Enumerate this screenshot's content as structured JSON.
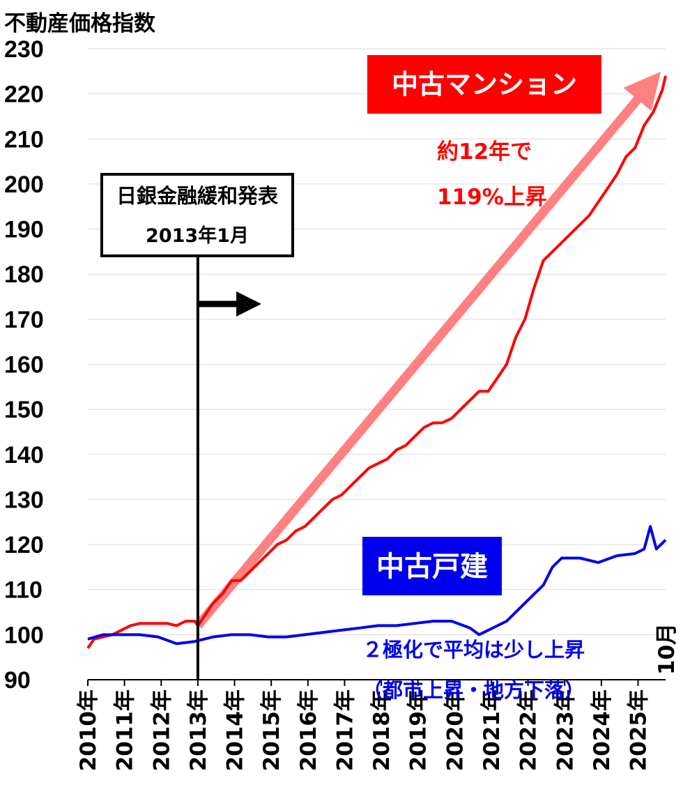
{
  "chart_data": {
    "type": "line",
    "title": "不動産価格指数",
    "ylim": [
      90,
      230
    ],
    "yticks": [
      90,
      100,
      110,
      120,
      130,
      140,
      150,
      160,
      170,
      180,
      190,
      200,
      210,
      220,
      230
    ],
    "x_start": "2010-01",
    "x_end": "2025-10",
    "xticks": [
      "2010年",
      "2011年",
      "2012年",
      "2013年",
      "2014年",
      "2015年",
      "2016年",
      "2017年",
      "2018年",
      "2019年",
      "2020年",
      "2021年",
      "2022年",
      "2023年",
      "2024年",
      "2025年"
    ],
    "x_end_label": "10月",
    "grid": true,
    "series": [
      {
        "name": "中古マンション",
        "color": "#ff0000",
        "points": [
          [
            "2010-01",
            97
          ],
          [
            "2010-03",
            99
          ],
          [
            "2010-06",
            99.5
          ],
          [
            "2010-09",
            100
          ],
          [
            "2010-12",
            101
          ],
          [
            "2011-03",
            102
          ],
          [
            "2011-06",
            102.5
          ],
          [
            "2011-09",
            102.5
          ],
          [
            "2011-12",
            102.5
          ],
          [
            "2012-03",
            102.5
          ],
          [
            "2012-06",
            102
          ],
          [
            "2012-09",
            103
          ],
          [
            "2012-12",
            103
          ],
          [
            "2013-01",
            102
          ],
          [
            "2013-03",
            104
          ],
          [
            "2013-06",
            107
          ],
          [
            "2013-09",
            109
          ],
          [
            "2013-12",
            112
          ],
          [
            "2014-03",
            112
          ],
          [
            "2014-06",
            114
          ],
          [
            "2014-09",
            116
          ],
          [
            "2014-12",
            118
          ],
          [
            "2015-03",
            120
          ],
          [
            "2015-06",
            121
          ],
          [
            "2015-09",
            123
          ],
          [
            "2015-12",
            124
          ],
          [
            "2016-03",
            126
          ],
          [
            "2016-06",
            128
          ],
          [
            "2016-09",
            130
          ],
          [
            "2016-12",
            131
          ],
          [
            "2017-03",
            133
          ],
          [
            "2017-06",
            135
          ],
          [
            "2017-09",
            137
          ],
          [
            "2017-12",
            138
          ],
          [
            "2018-03",
            139
          ],
          [
            "2018-06",
            141
          ],
          [
            "2018-09",
            142
          ],
          [
            "2018-12",
            144
          ],
          [
            "2019-03",
            146
          ],
          [
            "2019-06",
            147
          ],
          [
            "2019-09",
            147
          ],
          [
            "2019-12",
            148
          ],
          [
            "2020-03",
            150
          ],
          [
            "2020-06",
            152
          ],
          [
            "2020-09",
            154
          ],
          [
            "2020-12",
            154
          ],
          [
            "2021-03",
            157
          ],
          [
            "2021-06",
            160
          ],
          [
            "2021-09",
            166
          ],
          [
            "2021-12",
            170
          ],
          [
            "2022-03",
            177
          ],
          [
            "2022-06",
            183
          ],
          [
            "2022-09",
            185
          ],
          [
            "2022-12",
            187
          ],
          [
            "2023-03",
            189
          ],
          [
            "2023-06",
            191
          ],
          [
            "2023-09",
            193
          ],
          [
            "2023-12",
            196
          ],
          [
            "2024-03",
            199
          ],
          [
            "2024-06",
            202
          ],
          [
            "2024-09",
            206
          ],
          [
            "2024-12",
            208
          ],
          [
            "2025-03",
            213
          ],
          [
            "2025-06",
            216
          ],
          [
            "2025-09",
            221
          ],
          [
            "2025-10",
            224
          ]
        ]
      },
      {
        "name": "中古戸建",
        "color": "#0000ee",
        "points": [
          [
            "2010-01",
            99
          ],
          [
            "2010-06",
            100
          ],
          [
            "2010-12",
            100
          ],
          [
            "2011-06",
            100
          ],
          [
            "2011-12",
            99.5
          ],
          [
            "2012-06",
            98
          ],
          [
            "2012-12",
            98.5
          ],
          [
            "2013-06",
            99.5
          ],
          [
            "2013-12",
            100
          ],
          [
            "2014-06",
            100
          ],
          [
            "2014-12",
            99.5
          ],
          [
            "2015-06",
            99.5
          ],
          [
            "2015-12",
            100
          ],
          [
            "2016-06",
            100.5
          ],
          [
            "2016-12",
            101
          ],
          [
            "2017-06",
            101.5
          ],
          [
            "2017-12",
            102
          ],
          [
            "2018-06",
            102
          ],
          [
            "2018-12",
            102.5
          ],
          [
            "2019-06",
            103
          ],
          [
            "2019-12",
            103
          ],
          [
            "2020-06",
            101.5
          ],
          [
            "2020-09",
            100
          ],
          [
            "2020-12",
            101
          ],
          [
            "2021-06",
            103
          ],
          [
            "2021-12",
            107
          ],
          [
            "2022-06",
            111
          ],
          [
            "2022-09",
            115
          ],
          [
            "2022-12",
            117
          ],
          [
            "2023-06",
            117
          ],
          [
            "2023-12",
            116
          ],
          [
            "2024-06",
            117.5
          ],
          [
            "2024-12",
            118
          ],
          [
            "2025-03",
            119
          ],
          [
            "2025-05",
            124
          ],
          [
            "2025-07",
            119
          ],
          [
            "2025-10",
            121
          ]
        ]
      }
    ],
    "annotations": {
      "boj_box_line1": "日銀金融緩和発表",
      "boj_box_line2": "2013年1月",
      "boj_date": "2013-01",
      "mansion_label": "中古マンション",
      "mansion_note_line1": "約12年で",
      "mansion_note_line2": "119%上昇",
      "house_label": "中古戸建",
      "house_note_line1": "２極化で平均は少し上昇",
      "house_note_line2": "（都市上昇・地方下落）"
    },
    "colors": {
      "mansion": "#ff0000",
      "house": "#0000ee",
      "trend_arrow": "#ff8080",
      "badge_mansion_bg": "#ff0000",
      "badge_house_bg": "#0000ee",
      "grid": "#d9d9d9"
    }
  }
}
